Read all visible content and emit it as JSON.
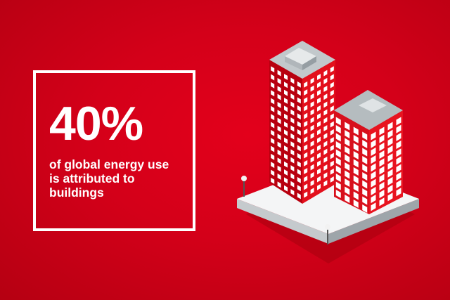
{
  "stat": {
    "value": "40%",
    "lines": [
      "of global energy use",
      "is attributed to",
      "buildings"
    ]
  },
  "colors": {
    "background": "#d40019",
    "text": "#ffffff",
    "building": "#e0101e",
    "platform": "#f2f3f4"
  },
  "illustration": {
    "icons": [
      "tall-building-icon",
      "short-building-icon",
      "street-lamp-icon",
      "platform-icon"
    ]
  }
}
